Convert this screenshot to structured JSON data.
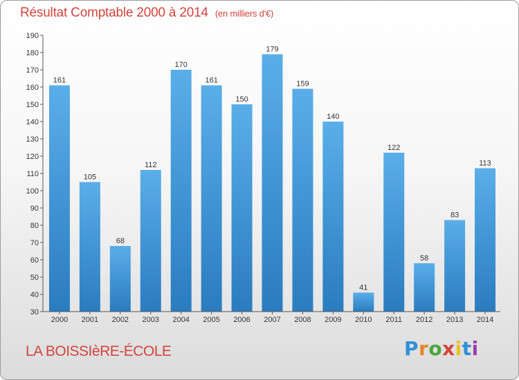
{
  "header": {
    "title": "Résultat Comptable 2000 à 2014",
    "unit": "(en milliers d'€)"
  },
  "footer": {
    "town": "LA BOISSIèRE-ÉCOLE",
    "logo": "Proxiti"
  },
  "colors": {
    "title": "#d2443c",
    "bar_light": "#5aaee8",
    "bar_dark": "#2a7cc0",
    "logo_letters": [
      "#2e8fd6",
      "#e8842a",
      "#4aa63c",
      "#d2443c",
      "#e8c21e",
      "#2e8fd6",
      "#9a3fb0"
    ]
  },
  "chart_data": {
    "type": "bar",
    "title": "Résultat Comptable 2000 à 2014",
    "subtitle": "(en milliers d'€)",
    "xlabel": "",
    "ylabel": "",
    "categories": [
      "2000",
      "2001",
      "2002",
      "2003",
      "2004",
      "2005",
      "2006",
      "2007",
      "2008",
      "2009",
      "2010",
      "2011",
      "2012",
      "2013",
      "2014"
    ],
    "values": [
      161,
      105,
      68,
      112,
      170,
      161,
      150,
      179,
      159,
      140,
      41,
      122,
      58,
      83,
      113
    ],
    "ylim": [
      30,
      190
    ],
    "yticks": [
      30,
      40,
      50,
      60,
      70,
      80,
      90,
      100,
      110,
      120,
      130,
      140,
      150,
      160,
      170,
      180,
      190
    ],
    "grid": false,
    "legend": "none"
  }
}
